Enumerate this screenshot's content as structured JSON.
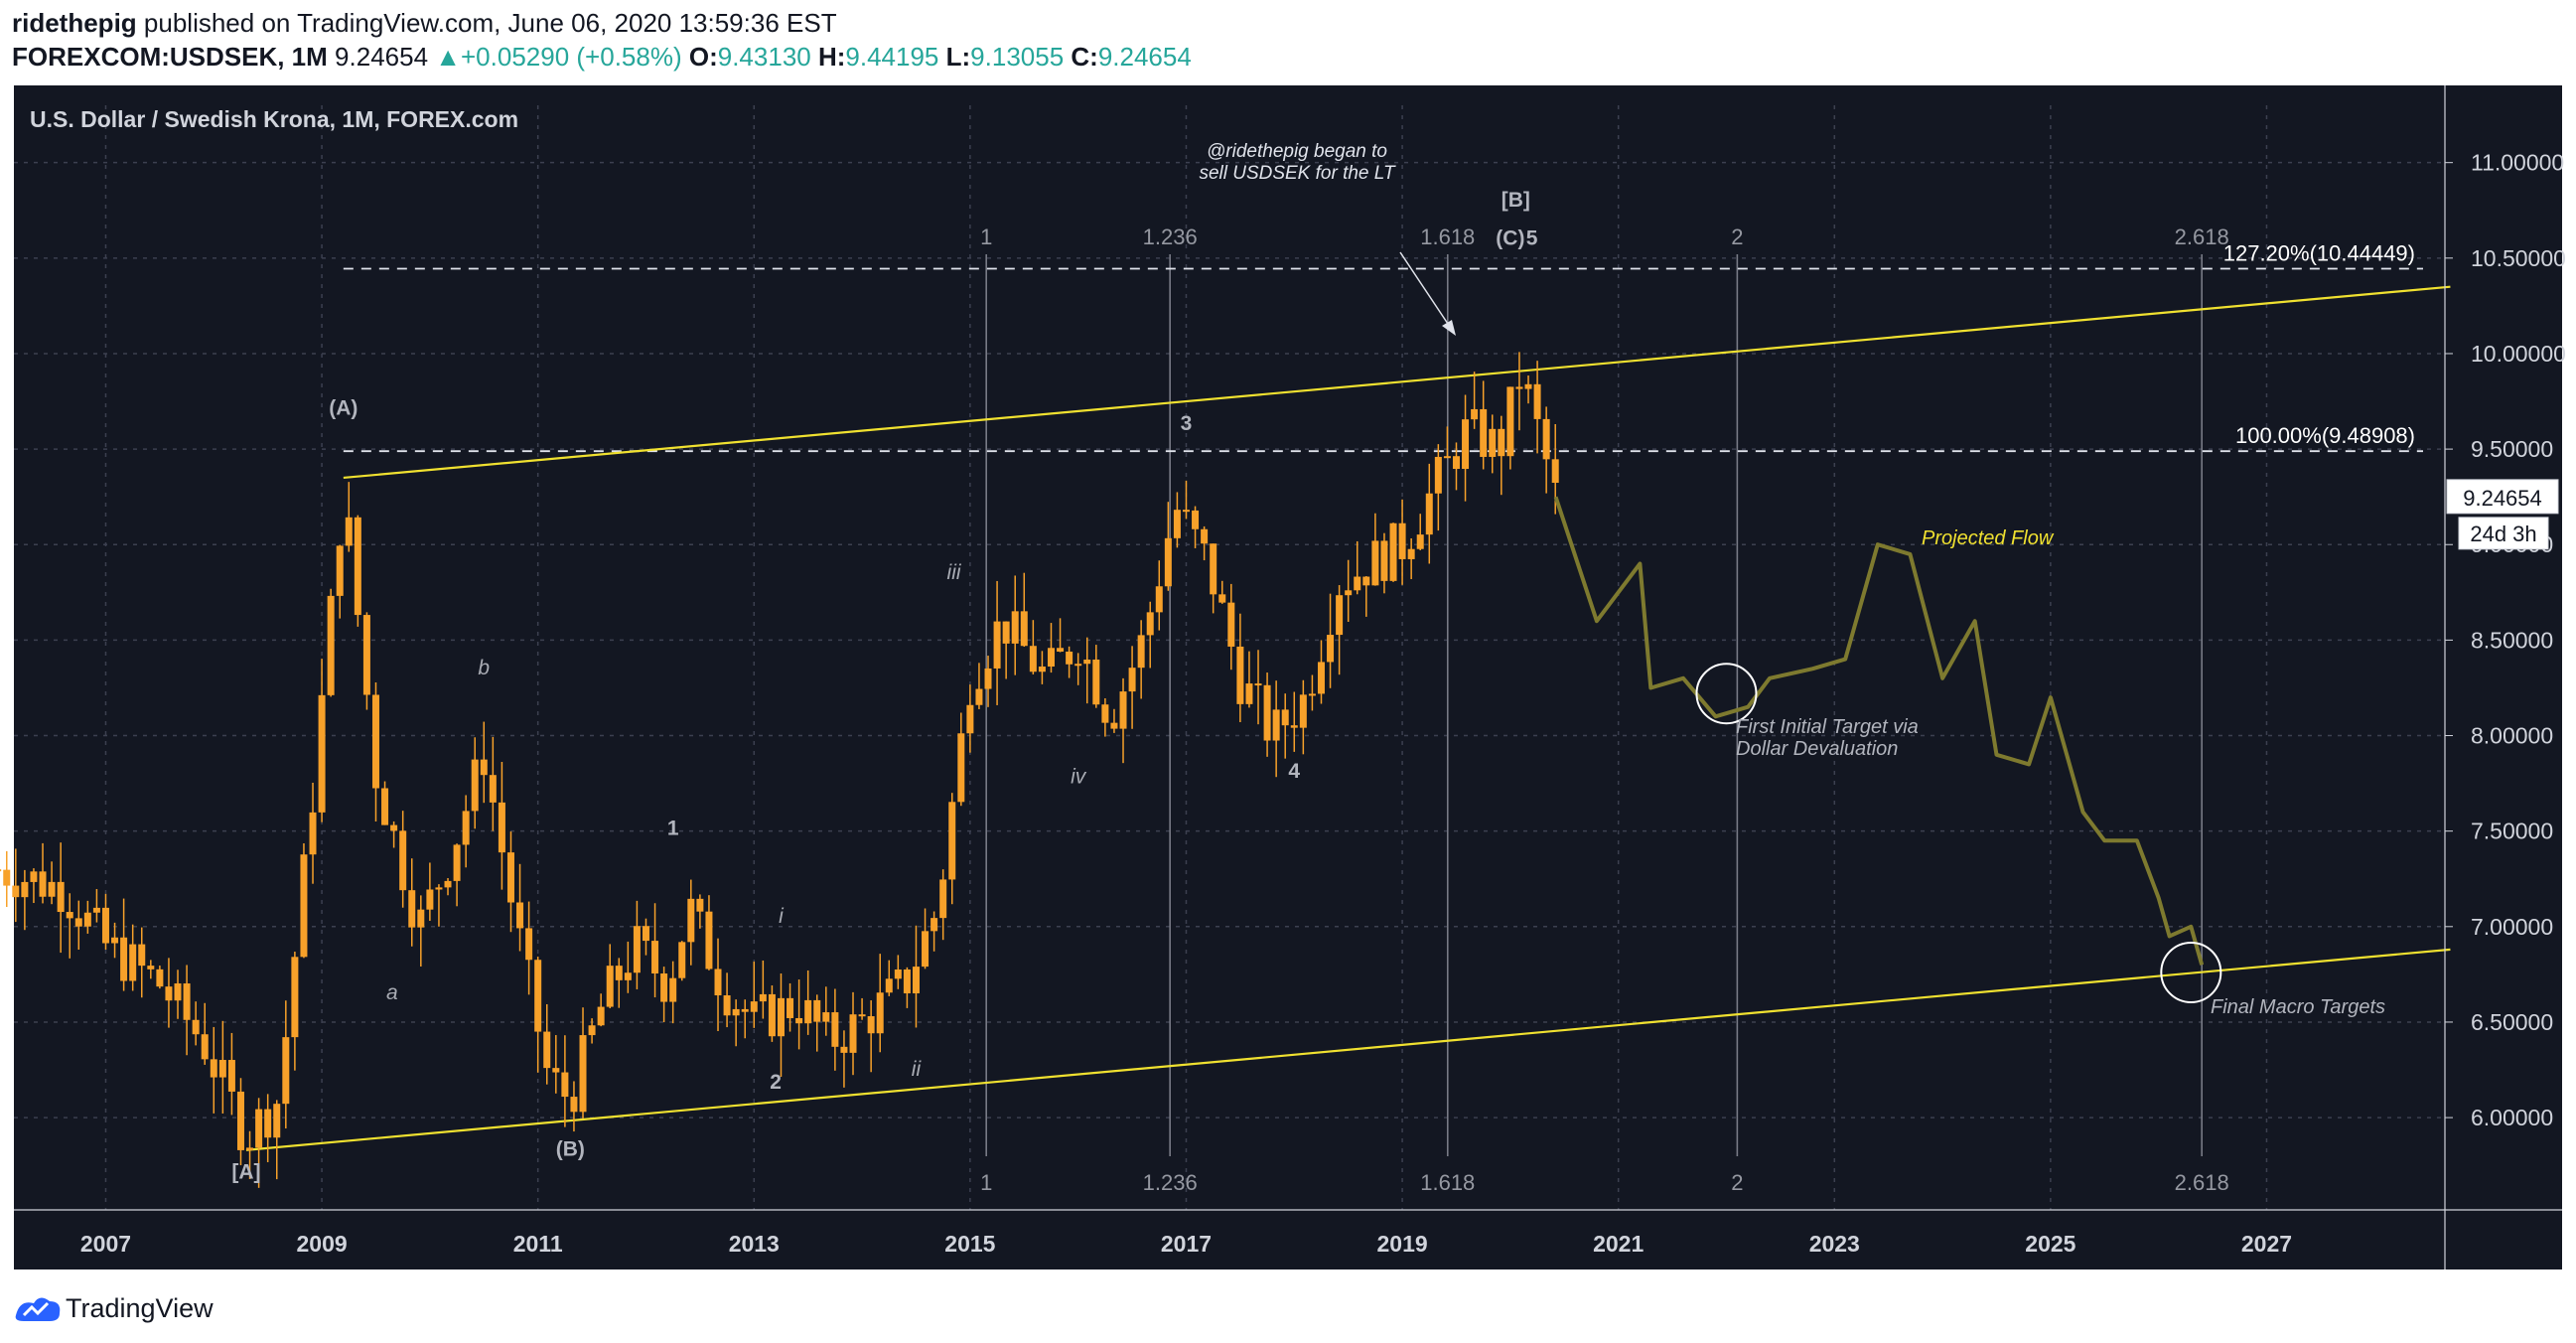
{
  "header": {
    "author": "ridethepig",
    "published_text": "published on TradingView.com, June 06, 2020 13:59:36 EST",
    "symbol": "FOREXCOM:USDSEK, 1M",
    "last": "9.24654",
    "change_arrow": "▲",
    "change": "+0.05290 (+0.58%)",
    "o_label": "O:",
    "o": "9.43130",
    "h_label": "H:",
    "h": "9.44195",
    "l_label": "L:",
    "l": "9.13055",
    "c_label": "C:",
    "c": "9.24654"
  },
  "footer": {
    "brand": "TradingView",
    "logo_icon": "tradingview-logo-icon"
  },
  "colors": {
    "background": "#131722",
    "candle": "#f7a12a",
    "channel": "#f0e130",
    "projection": "#7e7a2f",
    "grid": "#3c4050",
    "axis_text": "#d1d4dc",
    "fib_text": "#9598a1",
    "label_gray": "#b2b5be",
    "price_badge": "#ffffff",
    "up": "#26a69a"
  },
  "chart_data": {
    "type": "candlestick",
    "title": "U.S. Dollar / Swedish Krona, 1M, FOREX.com",
    "x_ticks": [
      "2007",
      "2009",
      "2011",
      "2013",
      "2015",
      "2017",
      "2019",
      "2021",
      "2023",
      "2025",
      "2027"
    ],
    "y_ticks": [
      "6.00000",
      "6.50000",
      "7.00000",
      "7.50000",
      "8.00000",
      "8.50000",
      "9.00000",
      "9.50000",
      "10.00000",
      "10.50000",
      "11.00000"
    ],
    "ylim": [
      5.6,
      11.3
    ],
    "xlim": [
      2006.2,
      2028.7
    ],
    "price_series": [
      [
        2006.0,
        7.3
      ],
      [
        2006.6,
        7.2
      ],
      [
        2007.0,
        6.9
      ],
      [
        2007.5,
        6.7
      ],
      [
        2007.9,
        6.4
      ],
      [
        2008.3,
        5.9
      ],
      [
        2008.6,
        6.1
      ],
      [
        2008.9,
        7.6
      ],
      [
        2009.2,
        9.3
      ],
      [
        2009.5,
        7.8
      ],
      [
        2009.9,
        7.0
      ],
      [
        2010.2,
        7.4
      ],
      [
        2010.5,
        7.9
      ],
      [
        2010.8,
        7.0
      ],
      [
        2011.1,
        6.2
      ],
      [
        2011.3,
        6.1
      ],
      [
        2011.6,
        6.6
      ],
      [
        2011.9,
        6.9
      ],
      [
        2012.2,
        6.7
      ],
      [
        2012.4,
        7.1
      ],
      [
        2012.7,
        6.7
      ],
      [
        2013.0,
        6.5
      ],
      [
        2013.4,
        6.6
      ],
      [
        2013.7,
        6.4
      ],
      [
        2014.0,
        6.5
      ],
      [
        2014.4,
        6.7
      ],
      [
        2014.7,
        7.1
      ],
      [
        2015.0,
        8.3
      ],
      [
        2015.3,
        8.6
      ],
      [
        2015.7,
        8.3
      ],
      [
        2016.0,
        8.5
      ],
      [
        2016.3,
        8.1
      ],
      [
        2016.6,
        8.5
      ],
      [
        2016.9,
        9.2
      ],
      [
        2017.2,
        8.9
      ],
      [
        2017.5,
        8.3
      ],
      [
        2017.8,
        8.0
      ],
      [
        2018.1,
        8.2
      ],
      [
        2018.4,
        8.8
      ],
      [
        2018.7,
        8.9
      ],
      [
        2019.0,
        9.0
      ],
      [
        2019.3,
        9.3
      ],
      [
        2019.6,
        9.6
      ],
      [
        2019.9,
        9.5
      ],
      [
        2020.1,
        9.9
      ],
      [
        2020.3,
        9.5
      ],
      [
        2020.42,
        9.24654
      ]
    ],
    "projected_flow": [
      [
        2020.42,
        9.25
      ],
      [
        2020.8,
        8.6
      ],
      [
        2021.2,
        8.9
      ],
      [
        2021.3,
        8.25
      ],
      [
        2021.6,
        8.3
      ],
      [
        2021.9,
        8.1
      ],
      [
        2022.2,
        8.15
      ],
      [
        2022.4,
        8.3
      ],
      [
        2022.8,
        8.35
      ],
      [
        2023.1,
        8.4
      ],
      [
        2023.4,
        9.0
      ],
      [
        2023.7,
        8.95
      ],
      [
        2024.0,
        8.3
      ],
      [
        2024.3,
        8.6
      ],
      [
        2024.5,
        7.9
      ],
      [
        2024.8,
        7.85
      ],
      [
        2025.0,
        8.2
      ],
      [
        2025.3,
        7.6
      ],
      [
        2025.5,
        7.45
      ],
      [
        2025.8,
        7.45
      ],
      [
        2026.0,
        7.15
      ],
      [
        2026.1,
        6.95
      ],
      [
        2026.3,
        7.0
      ],
      [
        2026.4,
        6.8
      ]
    ],
    "channel_lines": [
      {
        "from": [
          2009.2,
          9.35
        ],
        "to": [
          2028.7,
          10.35
        ]
      },
      {
        "from": [
          2008.3,
          5.83
        ],
        "to": [
          2028.7,
          6.88
        ]
      }
    ],
    "horizontal_levels": [
      {
        "label": "127.20%(10.44449)",
        "value": 10.44449,
        "from_year": 2009.2
      },
      {
        "label": "100.00%(9.48908)",
        "value": 9.48908,
        "from_year": 2009.2
      }
    ],
    "fib_time_lines": [
      {
        "label": "1",
        "x": 2015.15
      },
      {
        "label": "1.236",
        "x": 2016.85
      },
      {
        "label": "1.618",
        "x": 2019.42
      },
      {
        "label": "2",
        "x": 2022.1
      },
      {
        "label": "2.618",
        "x": 2026.4
      }
    ],
    "wave_labels": [
      {
        "text": "[A]",
        "x": 2008.3,
        "y": 5.68,
        "style": "bold"
      },
      {
        "text": "(A)",
        "x": 2009.2,
        "y": 9.68,
        "style": "bold"
      },
      {
        "text": "(B)",
        "x": 2011.3,
        "y": 5.8,
        "style": "bold"
      },
      {
        "text": "a",
        "x": 2009.65,
        "y": 6.62,
        "style": "italic"
      },
      {
        "text": "b",
        "x": 2010.5,
        "y": 8.32,
        "style": "italic"
      },
      {
        "text": "1",
        "x": 2012.25,
        "y": 7.48,
        "style": "bold"
      },
      {
        "text": "2",
        "x": 2013.2,
        "y": 6.15,
        "style": "bold"
      },
      {
        "text": "i",
        "x": 2013.25,
        "y": 7.02,
        "style": "italic"
      },
      {
        "text": "ii",
        "x": 2014.5,
        "y": 6.22,
        "style": "italic"
      },
      {
        "text": "iii",
        "x": 2014.85,
        "y": 8.82,
        "style": "italic"
      },
      {
        "text": "iv",
        "x": 2016.0,
        "y": 7.75,
        "style": "italic"
      },
      {
        "text": "3",
        "x": 2017.0,
        "y": 9.6,
        "style": "bold"
      },
      {
        "text": "4",
        "x": 2018.0,
        "y": 7.78,
        "style": "bold"
      },
      {
        "text": "(C)",
        "x": 2020.0,
        "y": 10.57,
        "style": "bold"
      },
      {
        "text": "5",
        "x": 2020.2,
        "y": 10.57,
        "style": "bold"
      },
      {
        "text": "[B]",
        "x": 2020.05,
        "y": 10.77,
        "style": "bold"
      }
    ],
    "annotations": {
      "began_line1": "@ridethepig began to",
      "began_line2": "sell USDSEK for the LT",
      "projected_flow": "Projected Flow",
      "first_target_line1": "First Initial Target via",
      "first_target_line2": "Dollar Devaluation",
      "final_target": "Final Macro Targets"
    },
    "target_circles": [
      {
        "x": 2022.0,
        "y": 8.22
      },
      {
        "x": 2026.3,
        "y": 6.76
      }
    ],
    "price_badge": "9.24654",
    "countdown_badge": "24d 3h"
  }
}
